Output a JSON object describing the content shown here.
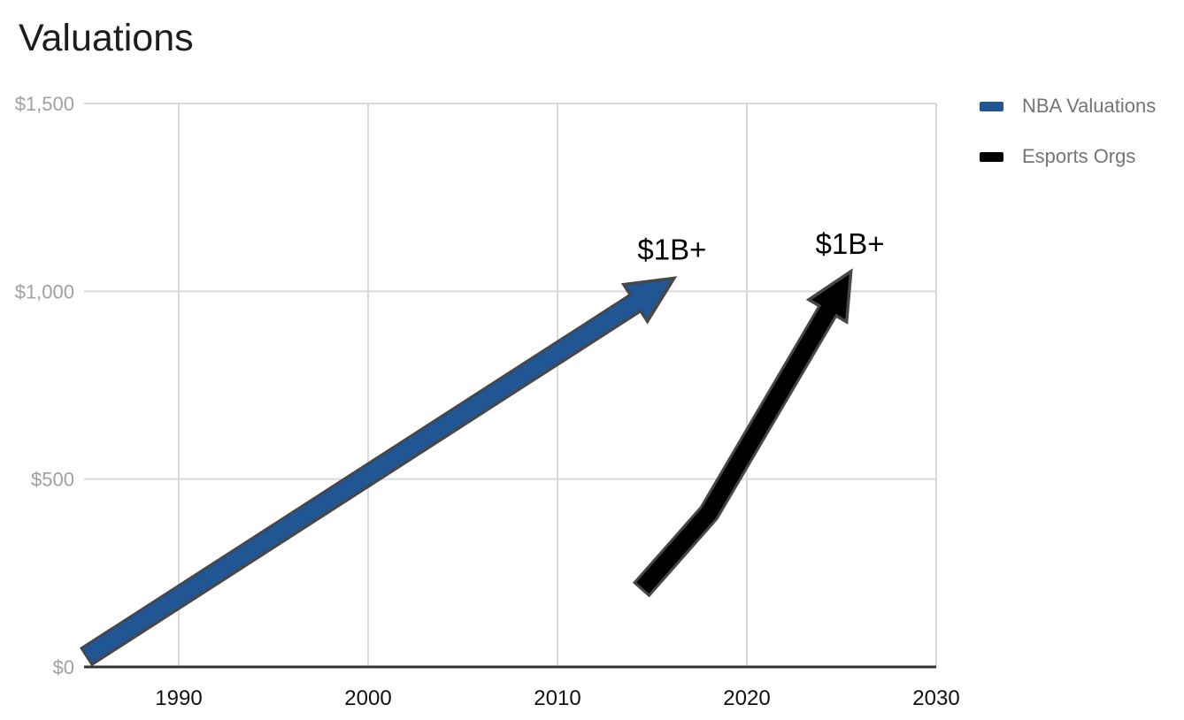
{
  "title": "Valuations",
  "legend": {
    "position": "right",
    "items": [
      {
        "label": "NBA Valuations",
        "color": "#1f5693"
      },
      {
        "label": "Esports Orgs",
        "color": "#000000"
      }
    ]
  },
  "axes": {
    "y_tick_labels": [
      "$0",
      "$500",
      "$1,000",
      "$1,500"
    ],
    "x_tick_labels": [
      "1990",
      "2000",
      "2010",
      "2020",
      "2030"
    ]
  },
  "chart_data": {
    "type": "line",
    "title": "Valuations",
    "xlabel": "",
    "ylabel": "",
    "xlim": [
      1985,
      2030
    ],
    "ylim": [
      0,
      1500
    ],
    "x_ticks": [
      1990,
      2000,
      2010,
      2020,
      2030
    ],
    "y_ticks": [
      0,
      500,
      1000,
      1500
    ],
    "grid": true,
    "legend_position": "right",
    "series": [
      {
        "name": "NBA Valuations",
        "color": "#1f5693",
        "style": "arrow",
        "points": [
          [
            1985.2,
            30
          ],
          [
            2016,
            1030
          ]
        ],
        "annotation": {
          "text": "$1B+",
          "at": "end"
        }
      },
      {
        "name": "Esports Orgs",
        "color": "#000000",
        "style": "arrow",
        "points": [
          [
            2014.5,
            210
          ],
          [
            2018,
            410
          ],
          [
            2025.4,
            1045
          ]
        ],
        "annotation": {
          "text": "$1B+",
          "at": "end"
        }
      }
    ]
  },
  "colors": {
    "background": "#ffffff",
    "grid": "#d9d9d9",
    "axis": "#333333",
    "arrow_outline": "#47474a",
    "title_text": "#1d1d1d",
    "x_tick_text": "#111111",
    "y_tick_text": "#a0a0a0",
    "legend_text": "#757575",
    "annotation_text": "#000000"
  }
}
